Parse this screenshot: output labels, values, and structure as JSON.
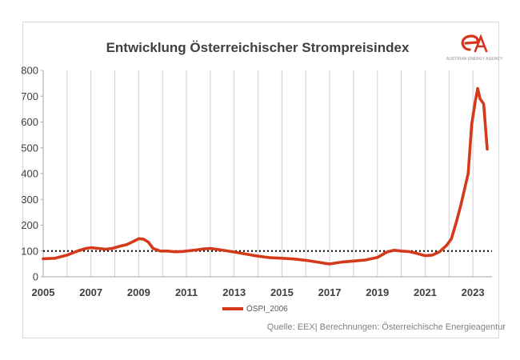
{
  "chart_data": {
    "type": "line",
    "title": "Entwicklung Österreichischer Strompreisindex",
    "xlabel": "",
    "ylabel": "",
    "xlim": [
      2005,
      2023.8
    ],
    "ylim": [
      0,
      800
    ],
    "y_ticks": [
      "0",
      "100",
      "200",
      "300",
      "400",
      "500",
      "600",
      "700",
      "800"
    ],
    "x_ticks": [
      "2005",
      "2007",
      "2009",
      "2011",
      "2013",
      "2015",
      "2017",
      "2019",
      "2021",
      "2023"
    ],
    "grid": "vertical",
    "legend_position": "bottom",
    "reference_line": {
      "y": 100,
      "style": "dotted"
    },
    "series": [
      {
        "name": "ÖSPI_2006",
        "color": "#d43a1a",
        "x": [
          2005.0,
          2005.5,
          2006.0,
          2006.5,
          2006.8,
          2007.0,
          2007.3,
          2007.6,
          2007.9,
          2008.2,
          2008.5,
          2008.8,
          2009.0,
          2009.2,
          2009.4,
          2009.6,
          2009.9,
          2010.2,
          2010.5,
          2010.8,
          2011.0,
          2011.4,
          2011.7,
          2012.0,
          2012.3,
          2012.6,
          2013.0,
          2013.5,
          2014.0,
          2014.5,
          2015.0,
          2015.5,
          2016.0,
          2016.5,
          2016.8,
          2017.0,
          2017.5,
          2018.0,
          2018.5,
          2019.0,
          2019.4,
          2019.7,
          2020.0,
          2020.3,
          2020.6,
          2021.0,
          2021.3,
          2021.6,
          2021.9,
          2022.1,
          2022.3,
          2022.5,
          2022.65,
          2022.8,
          2022.95,
          2023.1,
          2023.2,
          2023.3,
          2023.45,
          2023.6
        ],
        "values": [
          70,
          72,
          84,
          102,
          110,
          113,
          110,
          107,
          110,
          118,
          125,
          138,
          148,
          146,
          135,
          110,
          100,
          100,
          97,
          98,
          100,
          104,
          108,
          110,
          106,
          102,
          96,
          88,
          80,
          74,
          72,
          69,
          64,
          57,
          52,
          50,
          57,
          61,
          65,
          75,
          96,
          103,
          100,
          98,
          92,
          82,
          84,
          97,
          122,
          148,
          210,
          280,
          340,
          400,
          590,
          680,
          730,
          690,
          670,
          495
        ]
      }
    ]
  },
  "source_note": "Quelle: EEX| Berechnungen: Österreichische Energieagentur",
  "logo": {
    "mark": "eA",
    "tagline": "AUSTRIAN ENERGY AGENCY"
  }
}
